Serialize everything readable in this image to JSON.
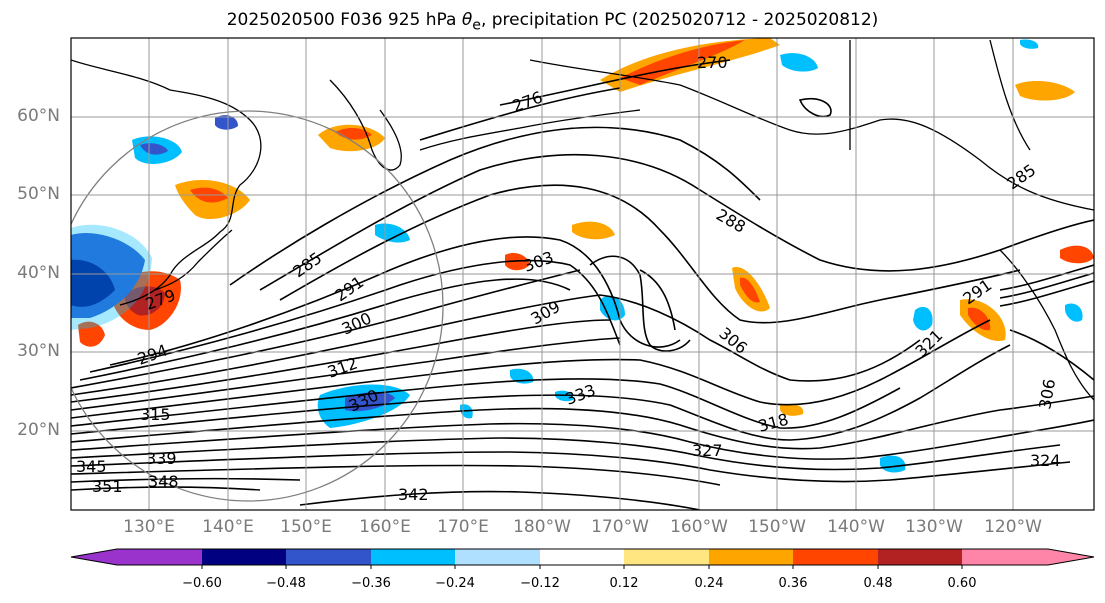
{
  "title": {
    "prefix": "2025020500 F036 925 hPa ",
    "theta": "θ",
    "subscript": "e",
    "suffix": ", precipitation PC (2025020712 - 2025020812)"
  },
  "lat_labels": [
    "60°N",
    "50°N",
    "40°N",
    "30°N",
    "20°N"
  ],
  "lon_labels": [
    "130°E",
    "140°E",
    "150°E",
    "160°E",
    "170°E",
    "180°W",
    "170°W",
    "160°W",
    "150°W",
    "140°W",
    "130°W",
    "120°W"
  ],
  "contour_labels": [
    "270",
    "276",
    "279",
    "285",
    "288",
    "291",
    "294",
    "300",
    "303",
    "306",
    "309",
    "312",
    "315",
    "318",
    "321",
    "324",
    "327",
    "330",
    "333",
    "339",
    "342",
    "345",
    "348",
    "351",
    "291",
    "285",
    "306"
  ],
  "colorbar": {
    "ticks": [
      "−0.60",
      "−0.48",
      "−0.36",
      "−0.24",
      "−0.12",
      "0.12",
      "0.24",
      "0.36",
      "0.48",
      "0.60"
    ],
    "colors": [
      "#9933cc",
      "#000080",
      "#3355cc",
      "#00bfff",
      "#b0e0ff",
      "#ffffff",
      "#ffe680",
      "#ffa500",
      "#ff4500",
      "#b22222",
      "#ff85a8"
    ]
  },
  "colors": {
    "positive_orange": "#ffa500",
    "positive_red": "#ff4500",
    "negative_blue": "#00bfff",
    "negative_light": "#b0e0ff",
    "contour": "#000000",
    "grid": "#999999"
  }
}
